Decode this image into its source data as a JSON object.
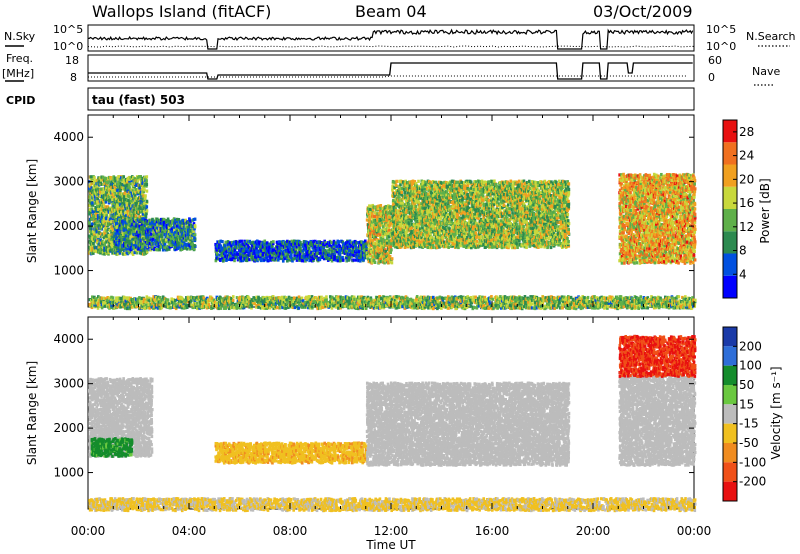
{
  "header": {
    "station": "Wallops Island (fitACF)",
    "beam": "Beam 04",
    "date": "03/Oct/2009"
  },
  "top_panels": {
    "nsky_label": "N.Sky",
    "nsearch_label": "N.Search",
    "freq_label_1": "Freq.",
    "freq_label_2": "[MHz]",
    "nave_label": "Nave",
    "cpid_label": "CPID",
    "cpid_value": "tau (fast) 503",
    "noise_ticks": [
      "10^5",
      "10^0"
    ],
    "freq_ticks": [
      "18",
      "8"
    ],
    "nave_ticks": [
      "60",
      "0"
    ]
  },
  "chart_data": [
    {
      "type": "heatmap",
      "title": "",
      "xlabel": "Time UT",
      "ylabel": "Slant Range [km]",
      "x_ticks": [
        "00:00",
        "04:00",
        "08:00",
        "12:00",
        "16:00",
        "20:00",
        "00:00"
      ],
      "xlim_hours": [
        0,
        24
      ],
      "ylim": [
        180,
        4500
      ],
      "y_ticks": [
        1000,
        2000,
        3000,
        4000
      ],
      "colorbar": {
        "label": "Power [dB]",
        "ticks": [
          4,
          8,
          12,
          16,
          20,
          24,
          28
        ],
        "range": [
          0,
          30
        ],
        "colors": [
          "#0000ff",
          "#0050e0",
          "#2c8a50",
          "#5fb04a",
          "#c8d83c",
          "#f0a020",
          "#f07020",
          "#e81010"
        ]
      },
      "echo_regions": [
        {
          "t0": 0.0,
          "t1": 2.3,
          "r0": 1400,
          "r1": 3150,
          "mean_power": 13
        },
        {
          "t0": 1.0,
          "t1": 4.2,
          "r0": 1500,
          "r1": 2200,
          "mean_power": 9
        },
        {
          "t0": 5.0,
          "t1": 11.0,
          "r0": 1250,
          "r1": 1700,
          "mean_power": 6
        },
        {
          "t0": 11.0,
          "t1": 12.0,
          "r0": 1200,
          "r1": 2500,
          "mean_power": 17
        },
        {
          "t0": 12.0,
          "t1": 19.0,
          "r0": 1550,
          "r1": 3050,
          "mean_power": 15
        },
        {
          "t0": 21.0,
          "t1": 24.0,
          "r0": 1200,
          "r1": 3200,
          "mean_power": 20
        },
        {
          "t0": 0.0,
          "t1": 24.0,
          "r0": 180,
          "r1": 450,
          "mean_power": 14
        }
      ]
    },
    {
      "type": "heatmap",
      "title": "",
      "xlabel": "Time UT",
      "ylabel": "Slant Range [km]",
      "x_ticks": [
        "00:00",
        "04:00",
        "08:00",
        "12:00",
        "16:00",
        "20:00",
        "00:00"
      ],
      "xlim_hours": [
        0,
        24
      ],
      "ylim": [
        180,
        4500
      ],
      "y_ticks": [
        1000,
        2000,
        3000,
        4000
      ],
      "colorbar": {
        "label": "Velocity [m s⁻¹]",
        "ticks": [
          "200",
          "100",
          "50",
          "15",
          "-15",
          "-50",
          "-100",
          "-200"
        ],
        "colors": [
          "#1a3aa8",
          "#2e6ed8",
          "#148c2c",
          "#6ac840",
          "#bcbcbc",
          "#f0c020",
          "#f08c20",
          "#f05018",
          "#e81010"
        ]
      },
      "echo_regions": [
        {
          "t0": 0.0,
          "t1": 2.5,
          "r0": 1400,
          "r1": 3150,
          "mean_velocity": 0
        },
        {
          "t0": 0.1,
          "t1": 1.7,
          "r0": 1400,
          "r1": 1800,
          "mean_velocity": 60
        },
        {
          "t0": 5.0,
          "t1": 11.0,
          "r0": 1250,
          "r1": 1700,
          "mean_velocity": -40
        },
        {
          "t0": 11.0,
          "t1": 19.0,
          "r0": 1200,
          "r1": 3050,
          "mean_velocity": 0
        },
        {
          "t0": 21.0,
          "t1": 24.0,
          "r0": 1200,
          "r1": 3200,
          "mean_velocity": 0
        },
        {
          "t0": 21.0,
          "t1": 24.0,
          "r0": 3200,
          "r1": 4100,
          "mean_velocity": -200
        },
        {
          "t0": 0.0,
          "t1": 24.0,
          "r0": 180,
          "r1": 450,
          "mean_velocity": -20
        }
      ]
    }
  ]
}
